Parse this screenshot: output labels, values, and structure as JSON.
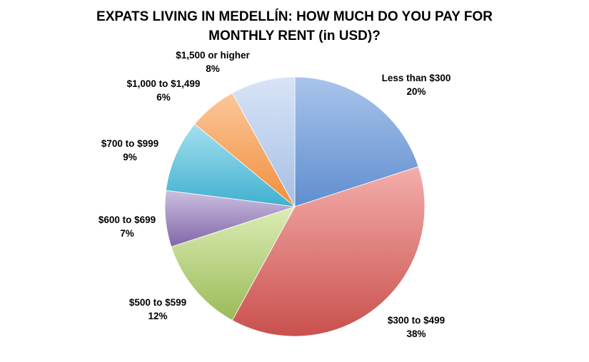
{
  "chart_data": {
    "type": "pie",
    "title_lines": [
      "EXPATS LIVING IN MEDELLÍN:  HOW MUCH DO YOU PAY FOR",
      "MONTHLY RENT (in USD)?"
    ],
    "slices": [
      {
        "label": "Less than $300",
        "value": 20,
        "value_label": "20%",
        "color_light": "#a9c4eb",
        "color_dark": "#5f8ecf"
      },
      {
        "label": "$300 to $499",
        "value": 38,
        "value_label": "38%",
        "color_light": "#f4aeab",
        "color_dark": "#c9504d"
      },
      {
        "label": "$500 to $599",
        "value": 12,
        "value_label": "12%",
        "color_light": "#dcedb5",
        "color_dark": "#9abb58"
      },
      {
        "label": "$600 to $699",
        "value": 7,
        "value_label": "7%",
        "color_light": "#cdbfe0",
        "color_dark": "#8067a7"
      },
      {
        "label": "$700 to $999",
        "value": 9,
        "value_label": "9%",
        "color_light": "#a4e0ef",
        "color_dark": "#3fb0cf"
      },
      {
        "label": "$1,000 to $1,499",
        "value": 6,
        "value_label": "6%",
        "color_light": "#fcc79a",
        "color_dark": "#f08e3b"
      },
      {
        "label": "$1,500 or higher",
        "value": 8,
        "value_label": "8%",
        "color_light": "#d8e4f6",
        "color_dark": "#a6bfe5"
      }
    ]
  }
}
